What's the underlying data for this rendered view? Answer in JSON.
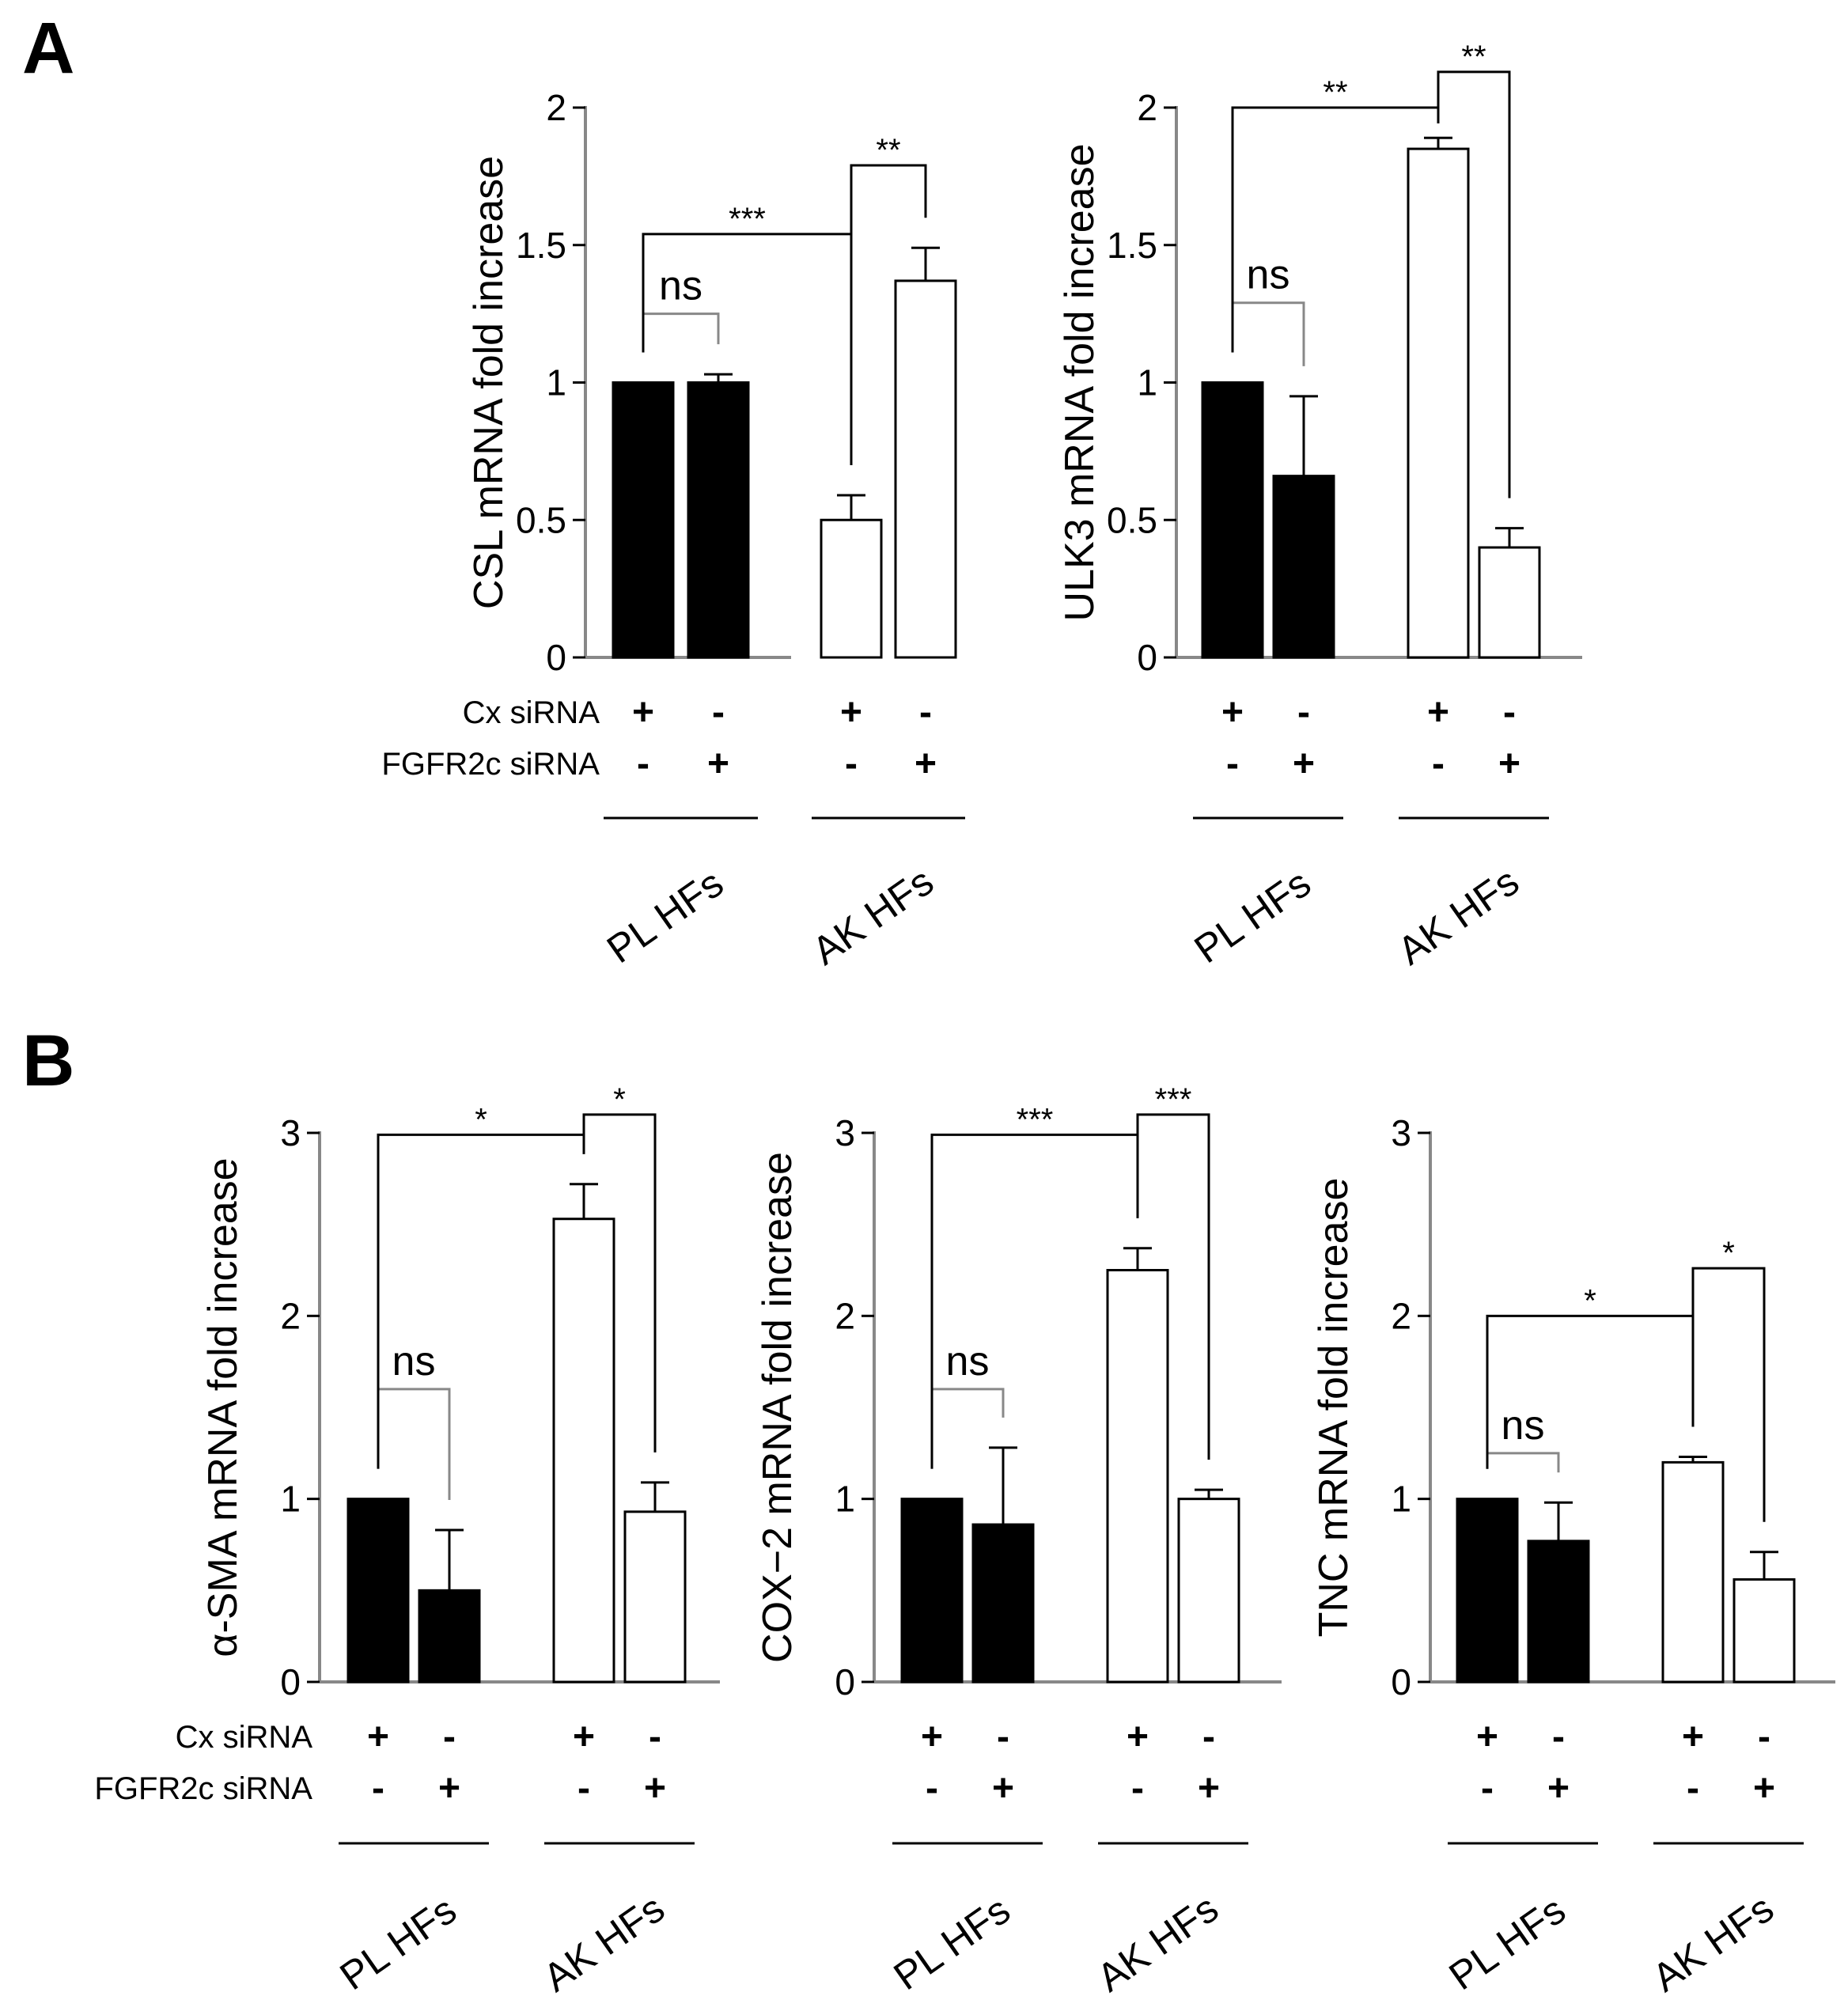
{
  "panels": [
    {
      "letter": "A"
    },
    {
      "letter": "B"
    }
  ],
  "row_labels": {
    "cx": "Cx siRNA",
    "fgfr": "FGFR2c siRNA"
  },
  "plus": "+",
  "minus": "-",
  "groups": [
    "PL  HFs",
    "AK  HFs"
  ],
  "colors": {
    "filled": "#000000",
    "open": "#ffffff",
    "axis": "#888888",
    "ink": "#000000"
  },
  "chart_data": [
    {
      "type": "bar",
      "ylabel": "CSL mRNA  fold increase",
      "ylim": [
        0,
        2
      ],
      "yticks": [
        {
          "v": 0,
          "label": "0"
        },
        {
          "v": 0.5,
          "label": "0.5"
        },
        {
          "v": 1,
          "label": "1"
        },
        {
          "v": 1.5,
          "label": "1.5"
        },
        {
          "v": 2,
          "label": "2"
        }
      ],
      "bars": [
        {
          "group": "PL HFs",
          "cx": "+",
          "fgfr": "-",
          "fill": "filled",
          "value": 1.0,
          "err": 0.0
        },
        {
          "group": "PL HFs",
          "cx": "-",
          "fgfr": "+",
          "fill": "filled",
          "value": 1.0,
          "err": 0.03
        },
        {
          "group": "AK HFs",
          "cx": "+",
          "fgfr": "-",
          "fill": "open",
          "value": 0.5,
          "err": 0.09
        },
        {
          "group": "AK HFs",
          "cx": "-",
          "fgfr": "+",
          "fill": "open",
          "value": 1.37,
          "err": 0.12
        }
      ],
      "annotations": [
        {
          "from": 0,
          "to": 1,
          "label": "ns",
          "y": 1.25
        },
        {
          "from": 0,
          "to": 2,
          "label": "***",
          "y": 1.54
        },
        {
          "from": 2,
          "to": 3,
          "label": "**",
          "y": 1.79
        }
      ]
    },
    {
      "type": "bar",
      "ylabel": "ULK3 mRNA  fold increase",
      "ylim": [
        0,
        2
      ],
      "yticks": [
        {
          "v": 0,
          "label": "0"
        },
        {
          "v": 0.5,
          "label": "0.5"
        },
        {
          "v": 1,
          "label": "1"
        },
        {
          "v": 1.5,
          "label": "1.5"
        },
        {
          "v": 2,
          "label": "2"
        }
      ],
      "bars": [
        {
          "group": "PL HFs",
          "cx": "+",
          "fgfr": "-",
          "fill": "filled",
          "value": 1.0,
          "err": 0.0
        },
        {
          "group": "PL HFs",
          "cx": "-",
          "fgfr": "+",
          "fill": "filled",
          "value": 0.66,
          "err": 0.29
        },
        {
          "group": "AK HFs",
          "cx": "+",
          "fgfr": "-",
          "fill": "open",
          "value": 1.85,
          "err": 0.04
        },
        {
          "group": "AK HFs",
          "cx": "-",
          "fgfr": "+",
          "fill": "open",
          "value": 0.4,
          "err": 0.07
        }
      ],
      "annotations": [
        {
          "from": 0,
          "to": 1,
          "label": "ns",
          "y": 1.29
        },
        {
          "from": 0,
          "to": 2,
          "label": "**",
          "y": 2.0
        },
        {
          "from": 2,
          "to": 3,
          "label": "**",
          "y": 2.13
        }
      ]
    },
    {
      "type": "bar",
      "ylabel": "α-SMA mRNA  fold increase",
      "ylim": [
        0,
        3
      ],
      "yticks": [
        {
          "v": 0,
          "label": "0"
        },
        {
          "v": 1,
          "label": "1"
        },
        {
          "v": 2,
          "label": "2"
        },
        {
          "v": 3,
          "label": "3"
        }
      ],
      "bars": [
        {
          "group": "PL HFs",
          "cx": "+",
          "fgfr": "-",
          "fill": "filled",
          "value": 1.0,
          "err": 0.0
        },
        {
          "group": "PL HFs",
          "cx": "-",
          "fgfr": "+",
          "fill": "filled",
          "value": 0.5,
          "err": 0.33
        },
        {
          "group": "AK HFs",
          "cx": "+",
          "fgfr": "-",
          "fill": "open",
          "value": 2.53,
          "err": 0.19
        },
        {
          "group": "AK HFs",
          "cx": "-",
          "fgfr": "+",
          "fill": "open",
          "value": 0.93,
          "err": 0.16
        }
      ],
      "annotations": [
        {
          "from": 0,
          "to": 1,
          "label": "ns",
          "y": 1.6
        },
        {
          "from": 0,
          "to": 2,
          "label": "*",
          "y": 2.99
        },
        {
          "from": 2,
          "to": 3,
          "label": "*",
          "y": 3.1
        }
      ]
    },
    {
      "type": "bar",
      "ylabel": "COX−2 mRNA  fold increase",
      "ylim": [
        0,
        3
      ],
      "yticks": [
        {
          "v": 0,
          "label": "0"
        },
        {
          "v": 1,
          "label": "1"
        },
        {
          "v": 2,
          "label": "2"
        },
        {
          "v": 3,
          "label": "3"
        }
      ],
      "bars": [
        {
          "group": "PL HFs",
          "cx": "+",
          "fgfr": "-",
          "fill": "filled",
          "value": 1.0,
          "err": 0.0
        },
        {
          "group": "PL HFs",
          "cx": "-",
          "fgfr": "+",
          "fill": "filled",
          "value": 0.86,
          "err": 0.42
        },
        {
          "group": "AK HFs",
          "cx": "+",
          "fgfr": "-",
          "fill": "open",
          "value": 2.25,
          "err": 0.12
        },
        {
          "group": "AK HFs",
          "cx": "-",
          "fgfr": "+",
          "fill": "open",
          "value": 1.0,
          "err": 0.05
        }
      ],
      "annotations": [
        {
          "from": 0,
          "to": 1,
          "label": "ns",
          "y": 1.6
        },
        {
          "from": 0,
          "to": 2,
          "label": "***",
          "y": 2.99
        },
        {
          "from": 2,
          "to": 3,
          "label": "***",
          "y": 3.1
        }
      ]
    },
    {
      "type": "bar",
      "ylabel": "TNC mRNA  fold increase",
      "ylim": [
        0,
        3
      ],
      "yticks": [
        {
          "v": 0,
          "label": "0"
        },
        {
          "v": 1,
          "label": "1"
        },
        {
          "v": 2,
          "label": "2"
        },
        {
          "v": 3,
          "label": "3"
        }
      ],
      "bars": [
        {
          "group": "PL HFs",
          "cx": "+",
          "fgfr": "-",
          "fill": "filled",
          "value": 1.0,
          "err": 0.0
        },
        {
          "group": "PL HFs",
          "cx": "-",
          "fgfr": "+",
          "fill": "filled",
          "value": 0.77,
          "err": 0.21
        },
        {
          "group": "AK HFs",
          "cx": "+",
          "fgfr": "-",
          "fill": "open",
          "value": 1.2,
          "err": 0.03
        },
        {
          "group": "AK HFs",
          "cx": "-",
          "fgfr": "+",
          "fill": "open",
          "value": 0.56,
          "err": 0.15
        }
      ],
      "annotations": [
        {
          "from": 0,
          "to": 1,
          "label": "ns",
          "y": 1.25
        },
        {
          "from": 0,
          "to": 2,
          "label": "*",
          "y": 2.0
        },
        {
          "from": 2,
          "to": 3,
          "label": "*",
          "y": 2.26
        }
      ]
    }
  ]
}
